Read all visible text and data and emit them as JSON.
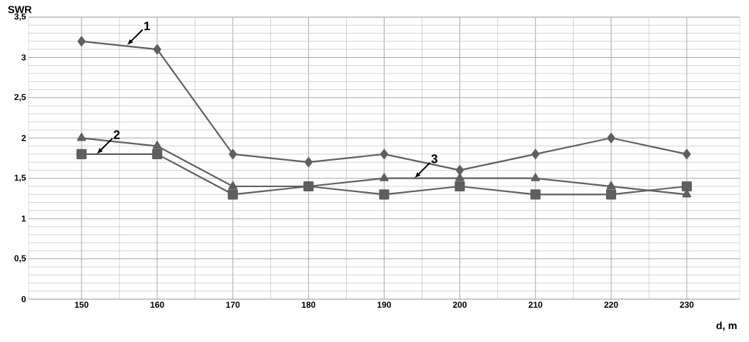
{
  "chart_data": {
    "type": "line",
    "xlabel": "d, m",
    "ylabel": "SWR",
    "x": [
      150,
      160,
      170,
      180,
      190,
      200,
      210,
      220,
      230
    ],
    "series": [
      {
        "color": "#5f5f5f",
        "marker": "diamond",
        "values": [
          3.2,
          3.1,
          1.8,
          1.7,
          1.8,
          1.6,
          1.8,
          2.0,
          1.8
        ]
      },
      {
        "color": "#5f5f5f",
        "marker": "square",
        "values": [
          1.8,
          1.8,
          1.3,
          1.4,
          1.3,
          1.4,
          1.3,
          1.3,
          1.4
        ]
      },
      {
        "color": "#5f5f5f",
        "marker": "triangle",
        "values": [
          2.0,
          1.9,
          1.4,
          1.4,
          1.5,
          1.5,
          1.5,
          1.4,
          1.3
        ]
      }
    ],
    "xlim": [
      143,
      237
    ],
    "ylim": [
      0,
      3.5
    ],
    "xticks": [
      150,
      160,
      170,
      180,
      190,
      200,
      210,
      220,
      230
    ],
    "yticks": [
      0,
      {
        "value": 0.5,
        "label": "0,5"
      },
      1,
      {
        "value": 1.5,
        "label": "1,5"
      },
      2,
      {
        "value": 2.5,
        "label": "2,5"
      },
      3,
      {
        "value": 3.5,
        "label": "3,5"
      }
    ],
    "grid": true,
    "annotations": [
      {
        "text": "1",
        "x": 156,
        "y": 3.15
      },
      {
        "text": "2",
        "x": 152,
        "y": 1.8
      },
      {
        "text": "3",
        "x": 194,
        "y": 1.5
      }
    ]
  }
}
